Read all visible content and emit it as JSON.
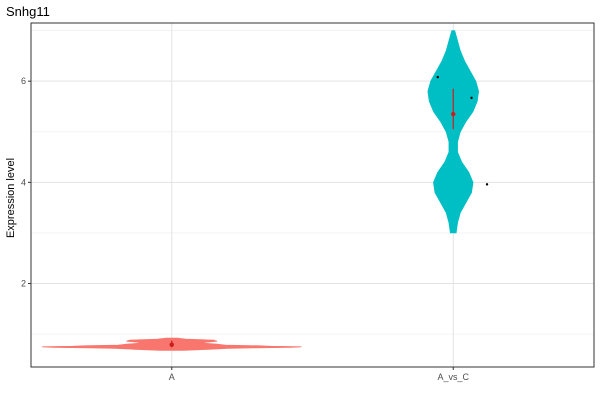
{
  "chart_data": {
    "type": "violin",
    "title": "Snhg11",
    "xlabel": "",
    "ylabel": "Expression level",
    "categories": [
      "A",
      "A_vs_C"
    ],
    "y_ticks": [
      2,
      4,
      6
    ],
    "ylim": [
      0.35,
      7.15
    ],
    "grid": true,
    "legend": "none",
    "series": [
      {
        "category": "A",
        "color": "#F8766D",
        "violin": {
          "y": [
            0.68,
            0.7,
            0.72,
            0.73,
            0.74,
            0.75,
            0.76,
            0.77,
            0.78,
            0.8,
            0.82,
            0.84,
            0.86,
            0.88,
            0.9,
            0.92
          ],
          "width": [
            0.08,
            0.26,
            0.4,
            0.58,
            0.84,
            0.92,
            0.7,
            0.62,
            0.38,
            0.32,
            0.22,
            0.24,
            0.32,
            0.3,
            0.1,
            0.04
          ]
        },
        "median": 0.79,
        "iqr": [
          0.74,
          0.87
        ],
        "mean": 0.79,
        "outliers": []
      },
      {
        "category": "A_vs_C",
        "color": "#00BFC4",
        "violin": {
          "y": [
            3.0,
            3.2,
            3.4,
            3.6,
            3.8,
            4.0,
            4.2,
            4.4,
            4.6,
            4.8,
            5.0,
            5.2,
            5.4,
            5.6,
            5.8,
            6.0,
            6.2,
            6.4,
            6.6,
            6.8,
            7.0
          ],
          "width": [
            0.02,
            0.03,
            0.05,
            0.09,
            0.13,
            0.14,
            0.11,
            0.06,
            0.03,
            0.03,
            0.05,
            0.09,
            0.14,
            0.17,
            0.18,
            0.16,
            0.12,
            0.08,
            0.05,
            0.03,
            0.01
          ]
        },
        "median": 5.35,
        "iqr": [
          5.05,
          5.85
        ],
        "mean": 5.35,
        "outliers": [
          {
            "x_offset": -0.055,
            "y": 6.08
          },
          {
            "x_offset": 0.065,
            "y": 5.67
          },
          {
            "x_offset": 0.12,
            "y": 3.96
          }
        ]
      }
    ]
  }
}
